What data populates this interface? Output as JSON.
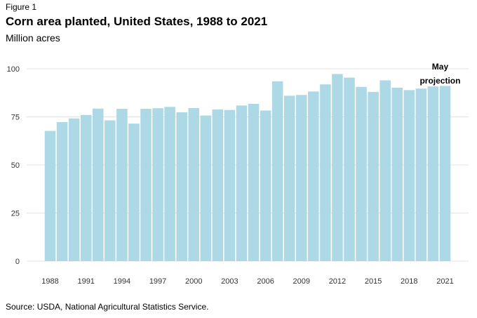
{
  "figure_label": "Figure 1",
  "source": "Source: USDA, National Agricultural Statistics Service.",
  "colors": {
    "bar": "#add8e6",
    "grid": "#e3e3e3",
    "text": "#333333"
  },
  "chart_data": {
    "type": "bar",
    "title": "Corn area planted, United States, 1988 to 2021",
    "subtitle": "Million acres",
    "xlabel": "",
    "ylabel": "",
    "ylim": [
      0,
      100
    ],
    "grid": true,
    "y_ticks": [
      0,
      25,
      50,
      75,
      100
    ],
    "x_tick_labels": [
      "1988",
      "1991",
      "1994",
      "1997",
      "2000",
      "2003",
      "2006",
      "2009",
      "2012",
      "2015",
      "2018",
      "2021"
    ],
    "categories": [
      "1988",
      "1989",
      "1990",
      "1991",
      "1992",
      "1993",
      "1994",
      "1995",
      "1996",
      "1997",
      "1998",
      "1999",
      "2000",
      "2001",
      "2002",
      "2003",
      "2004",
      "2005",
      "2006",
      "2007",
      "2008",
      "2009",
      "2010",
      "2011",
      "2012",
      "2013",
      "2014",
      "2015",
      "2016",
      "2017",
      "2018",
      "2019",
      "2020",
      "2021"
    ],
    "values": [
      67.7,
      72.3,
      74.2,
      76.0,
      79.3,
      73.2,
      79.2,
      71.5,
      79.2,
      79.5,
      80.2,
      77.4,
      79.6,
      75.7,
      78.9,
      78.6,
      80.9,
      81.8,
      78.3,
      93.5,
      86.0,
      86.4,
      88.2,
      91.9,
      97.3,
      95.4,
      90.6,
      88.0,
      94.0,
      90.2,
      88.9,
      89.7,
      90.8,
      91.1
    ],
    "annotation": {
      "text_line1": "May",
      "text_line2": "projection",
      "category": "2021"
    }
  }
}
